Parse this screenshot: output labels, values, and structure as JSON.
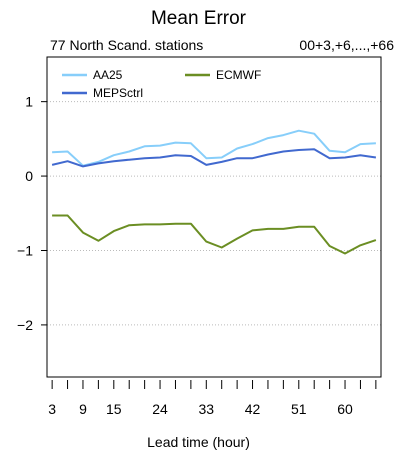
{
  "chart_data": {
    "type": "line",
    "title": "Mean Error",
    "subtitle_left": "77 North Scand. stations",
    "subtitle_right": "00+3,+6,...,+66",
    "xlabel": "Lead time (hour)",
    "ylabel": "",
    "x": [
      3,
      6,
      9,
      12,
      15,
      18,
      21,
      24,
      27,
      30,
      33,
      36,
      39,
      42,
      45,
      48,
      51,
      54,
      57,
      60,
      63,
      66
    ],
    "xticks": [
      3,
      6,
      9,
      12,
      15,
      18,
      21,
      24,
      27,
      30,
      33,
      36,
      39,
      42,
      45,
      48,
      51,
      54,
      57,
      60,
      63,
      66
    ],
    "xtick_labels": [
      {
        "x": 3,
        "label": "3"
      },
      {
        "x": 9,
        "label": "9"
      },
      {
        "x": 15,
        "label": "15"
      },
      {
        "x": 24,
        "label": "24"
      },
      {
        "x": 33,
        "label": "33"
      },
      {
        "x": 42,
        "label": "42"
      },
      {
        "x": 51,
        "label": "51"
      },
      {
        "x": 60,
        "label": "60"
      }
    ],
    "yticks": [
      -2,
      -1,
      0,
      1
    ],
    "ytick_labels": [
      "−2",
      "−1",
      "0",
      "1"
    ],
    "xlim": [
      2,
      67
    ],
    "ylim": [
      -2.7,
      1.6
    ],
    "grid": "horizontal dotted",
    "legend": "top-left",
    "series": [
      {
        "name": "AA25",
        "color": "#87cefa",
        "values": [
          0.32,
          0.33,
          0.14,
          0.19,
          0.28,
          0.33,
          0.4,
          0.41,
          0.45,
          0.44,
          0.24,
          0.25,
          0.37,
          0.43,
          0.51,
          0.55,
          0.61,
          0.57,
          0.34,
          0.32,
          0.43,
          0.44
        ]
      },
      {
        "name": "MEPSctrl",
        "color": "#4169cf",
        "values": [
          0.15,
          0.2,
          0.13,
          0.17,
          0.2,
          0.22,
          0.24,
          0.25,
          0.28,
          0.27,
          0.15,
          0.19,
          0.24,
          0.24,
          0.29,
          0.33,
          0.35,
          0.36,
          0.24,
          0.25,
          0.28,
          0.25
        ]
      },
      {
        "name": "ECMWF",
        "color": "#6b8e23",
        "values": [
          -0.53,
          -0.53,
          -0.76,
          -0.87,
          -0.74,
          -0.66,
          -0.65,
          -0.65,
          -0.64,
          -0.64,
          -0.88,
          -0.96,
          -0.84,
          -0.73,
          -0.71,
          -0.71,
          -0.68,
          -0.68,
          -0.94,
          -1.04,
          -0.93,
          -0.86
        ]
      }
    ]
  }
}
